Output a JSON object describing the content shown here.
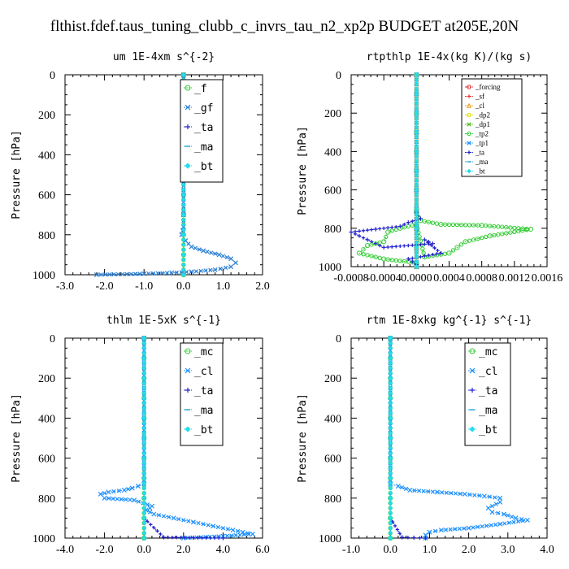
{
  "figure_title": "flthist.fdef.taus_tuning_clubb_c_invrs_tau_n2_xp2p  BUDGET at205E,20N",
  "chart_data": [
    {
      "type": "line",
      "title": "um  1E-4xm s^{-2}",
      "ylabel": "Pressure [hPa]",
      "xlim": [
        -3.0,
        2.0
      ],
      "ylim": [
        1000,
        0
      ],
      "xticks": [
        "-3.0",
        "-2.0",
        "-1.0",
        "0.0",
        "1.0",
        "2.0"
      ],
      "yticks": [
        "0",
        "200",
        "400",
        "600",
        "800",
        "1000"
      ],
      "legend_placement": "upper-middle",
      "series": [
        {
          "name": "_f",
          "color": "#33cc33",
          "marker": "circle",
          "x": [
            0,
            0,
            0,
            0,
            0,
            0,
            0,
            0,
            0,
            0,
            0
          ],
          "y": [
            0,
            100,
            200,
            300,
            400,
            500,
            600,
            700,
            800,
            900,
            1000
          ]
        },
        {
          "name": "_gf",
          "color": "#2a7fd4",
          "marker": "x",
          "x": [
            0.0,
            0.0,
            0.0,
            -0.02,
            -0.05,
            0.05,
            0.2,
            0.5,
            0.9,
            1.2,
            1.32,
            1.2,
            0.8,
            0.2,
            -0.3,
            -1.0,
            -2.2
          ],
          "y": [
            0,
            700,
            760,
            780,
            800,
            830,
            860,
            880,
            900,
            920,
            940,
            960,
            975,
            985,
            990,
            995,
            1000
          ]
        },
        {
          "name": "_ta",
          "color": "#2222cc",
          "marker": "plus",
          "x": [
            0,
            0,
            0,
            0,
            0,
            0,
            0,
            0,
            0,
            0,
            0
          ],
          "y": [
            0,
            100,
            200,
            300,
            400,
            500,
            600,
            700,
            800,
            900,
            1000
          ]
        },
        {
          "name": "_ma",
          "color": "#1aa0d0",
          "marker": "dash",
          "x": [
            0,
            0,
            0,
            0,
            0,
            0,
            0,
            0,
            0,
            0,
            0
          ],
          "y": [
            0,
            100,
            200,
            300,
            400,
            500,
            600,
            700,
            800,
            900,
            1000
          ]
        },
        {
          "name": "_bt",
          "color": "#22ddee",
          "marker": "diamond",
          "x": [
            0,
            0,
            0,
            0,
            0,
            0,
            0,
            0,
            0,
            0,
            0
          ],
          "y": [
            0,
            100,
            200,
            300,
            400,
            500,
            600,
            700,
            800,
            900,
            1000
          ]
        }
      ]
    },
    {
      "type": "line",
      "title": "rtpthlp  1E-4x(kg K)/(kg s)",
      "ylabel": "Pressure [hPa]",
      "xlim": [
        -0.0008,
        0.0016
      ],
      "ylim": [
        1000,
        0
      ],
      "xticks": [
        "-0.0008",
        "-0.0004",
        "0.0000",
        "0.0004",
        "0.0008",
        "0.0012",
        "0.0016"
      ],
      "yticks": [
        "0",
        "200",
        "400",
        "600",
        "800",
        "1000"
      ],
      "legend_placement": "upper-right",
      "series": [
        {
          "name": "_forcing",
          "color": "#dd2222",
          "marker": "circle",
          "x": [
            0,
            0,
            0,
            0,
            0,
            0,
            0,
            0,
            0,
            0,
            0
          ],
          "y": [
            0,
            100,
            200,
            300,
            400,
            500,
            600,
            700,
            800,
            900,
            1000
          ]
        },
        {
          "name": "_sf",
          "color": "#ee3333",
          "marker": "plus",
          "x": [
            0,
            0,
            0,
            0,
            0,
            0,
            0,
            0,
            0,
            0,
            0
          ],
          "y": [
            0,
            100,
            200,
            300,
            400,
            500,
            600,
            700,
            800,
            900,
            1000
          ]
        },
        {
          "name": "_cl",
          "color": "#ee9922",
          "marker": "triangle",
          "x": [
            0,
            0,
            0,
            0,
            0,
            0,
            0,
            0,
            0,
            0,
            0
          ],
          "y": [
            0,
            100,
            200,
            300,
            400,
            500,
            600,
            700,
            800,
            900,
            1000
          ]
        },
        {
          "name": "_dp2",
          "color": "#dddd00",
          "marker": "circle",
          "x": [
            0,
            0,
            0,
            0,
            0,
            0,
            0,
            0,
            0,
            0,
            0
          ],
          "y": [
            0,
            100,
            200,
            300,
            400,
            500,
            600,
            700,
            800,
            900,
            1000
          ]
        },
        {
          "name": "_dp1",
          "color": "#55bb22",
          "marker": "x",
          "x": [
            0,
            0,
            0,
            0,
            0,
            0,
            0,
            0,
            0,
            0,
            0
          ],
          "y": [
            0,
            100,
            200,
            300,
            400,
            500,
            600,
            700,
            800,
            900,
            1000
          ]
        },
        {
          "name": "_tp2",
          "color": "#33cc33",
          "marker": "circle",
          "x": [
            0,
            5e-05,
            0.0003,
            0.0008,
            0.0014,
            0.0009,
            0.0006,
            0.0005,
            0.0004,
            0.0001,
            0.0,
            -0.0002,
            -0.00035,
            -0.0004,
            -0.0006,
            -0.0007,
            -0.0004,
            0.0
          ],
          "y": [
            720,
            760,
            780,
            785,
            805,
            840,
            870,
            900,
            930,
            950,
            780,
            800,
            820,
            870,
            890,
            930,
            960,
            980
          ]
        },
        {
          "name": "_tp1",
          "color": "#1e90ff",
          "marker": "x",
          "x": [
            0,
            0,
            0,
            0,
            0,
            0,
            0,
            0,
            0,
            0,
            0
          ],
          "y": [
            0,
            100,
            200,
            300,
            400,
            500,
            600,
            700,
            800,
            900,
            1000
          ]
        },
        {
          "name": "_ta",
          "color": "#2222cc",
          "marker": "plus",
          "x": [
            0,
            5e-05,
            -0.0001,
            -0.0002,
            -0.0005,
            -0.0008,
            -0.0006,
            -0.0004,
            0.0002,
            0.0001,
            0.0003,
            -0.0001,
            0.0
          ],
          "y": [
            720,
            750,
            770,
            790,
            805,
            820,
            860,
            900,
            880,
            860,
            930,
            960,
            990
          ]
        },
        {
          "name": "_ma",
          "color": "#1aa0d0",
          "marker": "dash",
          "x": [
            0,
            0,
            0,
            0,
            0,
            0,
            0,
            0,
            0,
            0,
            0
          ],
          "y": [
            0,
            100,
            200,
            300,
            400,
            500,
            600,
            700,
            800,
            900,
            1000
          ]
        },
        {
          "name": "_bt",
          "color": "#22ddee",
          "marker": "diamond",
          "x": [
            0,
            0,
            0,
            0,
            0,
            0,
            0,
            0,
            0,
            0,
            0
          ],
          "y": [
            0,
            100,
            200,
            300,
            400,
            500,
            600,
            700,
            800,
            900,
            1000
          ]
        }
      ]
    },
    {
      "type": "line",
      "title": "thlm  1E-5xK s^{-1}",
      "ylabel": "Pressure [hPa]",
      "xlim": [
        -4.0,
        6.0
      ],
      "ylim": [
        1000,
        0
      ],
      "xticks": [
        "-4.0",
        "-2.0",
        "0.0",
        "2.0",
        "4.0",
        "6.0"
      ],
      "yticks": [
        "0",
        "200",
        "400",
        "600",
        "800",
        "1000"
      ],
      "legend_placement": "upper-right",
      "series": [
        {
          "name": "_mc",
          "color": "#33cc33",
          "marker": "circle",
          "x": [
            0,
            0,
            0,
            0,
            0,
            0,
            0,
            0,
            0,
            0,
            0
          ],
          "y": [
            0,
            100,
            200,
            300,
            400,
            500,
            600,
            700,
            800,
            900,
            1000
          ]
        },
        {
          "name": "_cl",
          "color": "#1e90ff",
          "marker": "x",
          "x": [
            0,
            0,
            -0.3,
            -0.6,
            -1.0,
            -1.8,
            -2.2,
            -2.0,
            -0.5,
            0.4,
            0.3,
            0.1,
            0.5,
            1.5,
            2.5,
            3.5,
            4.5,
            5.0,
            5.5,
            4.0,
            2.0
          ],
          "y": [
            0,
            730,
            740,
            750,
            760,
            770,
            780,
            800,
            810,
            840,
            850,
            860,
            880,
            900,
            920,
            940,
            960,
            970,
            980,
            990,
            1000
          ]
        },
        {
          "name": "_ta",
          "color": "#2222cc",
          "marker": "plus",
          "x": [
            0,
            0,
            0,
            0,
            0,
            0,
            0,
            0,
            0,
            0,
            1.0,
            2.5,
            4.0
          ],
          "y": [
            0,
            100,
            200,
            300,
            400,
            500,
            600,
            700,
            800,
            900,
            996,
            998,
            1000
          ]
        },
        {
          "name": "_ma",
          "color": "#1aa0d0",
          "marker": "dash",
          "x": [
            0,
            0,
            0,
            0,
            0,
            0,
            0,
            0,
            0,
            0,
            0
          ],
          "y": [
            0,
            100,
            200,
            300,
            400,
            500,
            600,
            700,
            800,
            900,
            1000
          ]
        },
        {
          "name": "_bt",
          "color": "#22ddee",
          "marker": "diamond",
          "x": [
            0,
            0,
            0,
            0,
            0,
            0,
            0,
            0,
            0,
            0,
            0
          ],
          "y": [
            0,
            100,
            200,
            300,
            400,
            500,
            600,
            700,
            800,
            900,
            1000
          ]
        }
      ]
    },
    {
      "type": "line",
      "title": "rtm  1E-8xkg kg^{-1} s^{-1}",
      "ylabel": "Pressure [hPa]",
      "xlim": [
        -1.0,
        4.0
      ],
      "ylim": [
        1000,
        0
      ],
      "xticks": [
        "-1.0",
        "0.0",
        "1.0",
        "2.0",
        "3.0",
        "4.0"
      ],
      "yticks": [
        "0",
        "200",
        "400",
        "600",
        "800",
        "1000"
      ],
      "legend_placement": "upper-right",
      "series": [
        {
          "name": "_mc",
          "color": "#33cc33",
          "marker": "circle",
          "x": [
            0,
            0,
            0,
            0,
            0,
            0,
            0,
            0,
            0,
            0,
            0
          ],
          "y": [
            0,
            100,
            200,
            300,
            400,
            500,
            600,
            700,
            800,
            900,
            1000
          ]
        },
        {
          "name": "_cl",
          "color": "#1e90ff",
          "marker": "x",
          "x": [
            0,
            0,
            0.2,
            0.5,
            1.2,
            1.9,
            2.4,
            2.8,
            2.8,
            2.5,
            2.6,
            2.9,
            3.2,
            3.5,
            2.8,
            2.0,
            1.3,
            1.0,
            0.9,
            0.9
          ],
          "y": [
            0,
            730,
            740,
            760,
            770,
            780,
            790,
            800,
            820,
            850,
            870,
            880,
            900,
            910,
            930,
            950,
            960,
            970,
            985,
            1000
          ]
        },
        {
          "name": "_ta",
          "color": "#2222cc",
          "marker": "plus",
          "x": [
            0,
            0,
            0,
            0,
            0,
            0,
            0,
            0,
            0,
            0,
            0.3,
            0.6,
            0.9
          ],
          "y": [
            0,
            100,
            200,
            300,
            400,
            500,
            600,
            700,
            800,
            900,
            996,
            998,
            1000
          ]
        },
        {
          "name": "_ma",
          "color": "#1aa0d0",
          "marker": "dash",
          "x": [
            0,
            0,
            0,
            0,
            0,
            0,
            0,
            0,
            0,
            0,
            0
          ],
          "y": [
            0,
            100,
            200,
            300,
            400,
            500,
            600,
            700,
            800,
            900,
            1000
          ]
        },
        {
          "name": "_bt",
          "color": "#22ddee",
          "marker": "diamond",
          "x": [
            0,
            0,
            0,
            0,
            0,
            0,
            0,
            0,
            0,
            0,
            0
          ],
          "y": [
            0,
            100,
            200,
            300,
            400,
            500,
            600,
            700,
            800,
            900,
            1000
          ]
        }
      ]
    }
  ]
}
